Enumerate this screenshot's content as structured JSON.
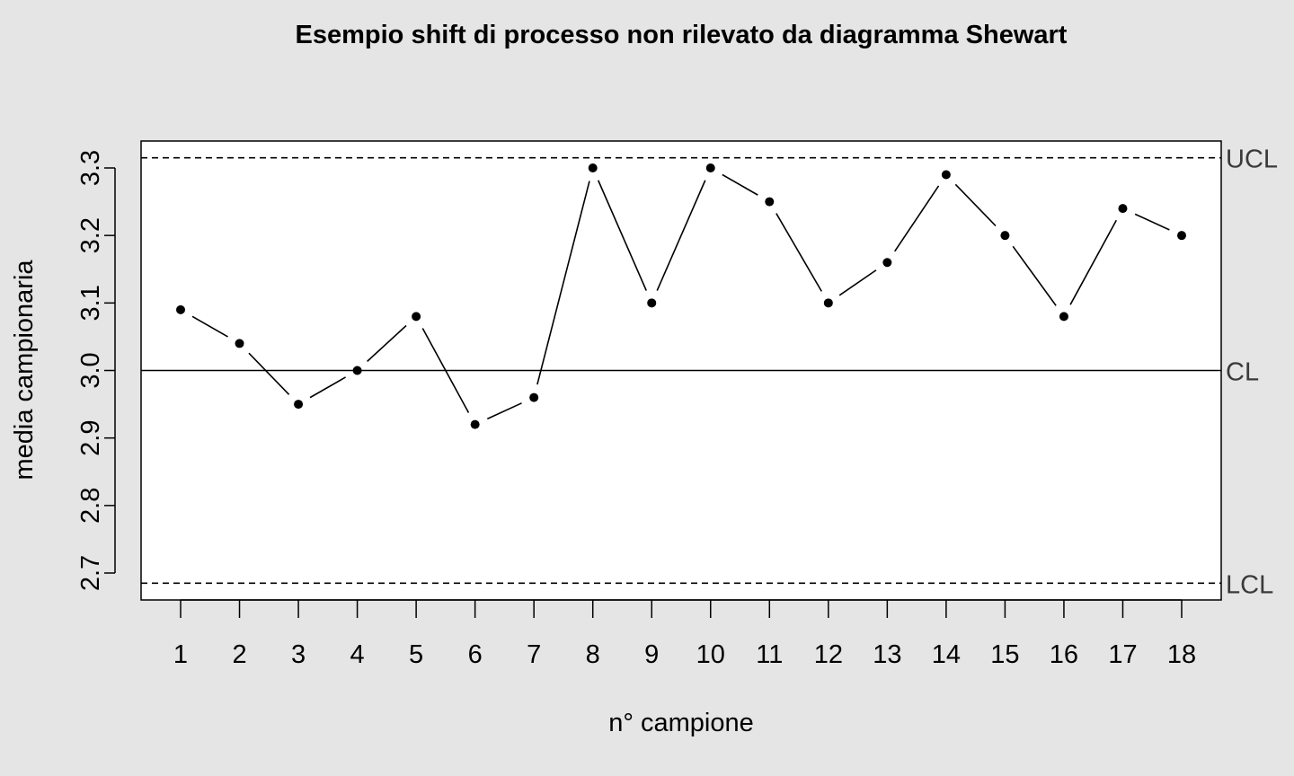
{
  "chart_data": {
    "type": "line",
    "title": "Esempio shift di processo non rilevato da diagramma Shewart",
    "xlabel": "n° campione",
    "ylabel": "media campionaria",
    "x": [
      1,
      2,
      3,
      4,
      5,
      6,
      7,
      8,
      9,
      10,
      11,
      12,
      13,
      14,
      15,
      16,
      17,
      18
    ],
    "series": [
      {
        "values": [
          3.09,
          3.04,
          2.95,
          3.0,
          3.08,
          2.92,
          2.96,
          3.3,
          3.1,
          3.3,
          3.25,
          3.1,
          3.16,
          3.29,
          3.2,
          3.08,
          3.24,
          3.2
        ]
      }
    ],
    "ylim": [
      2.68,
      3.34
    ],
    "yticks": [
      "2.7",
      "2.8",
      "2.9",
      "3.0",
      "3.1",
      "3.2",
      "3.3"
    ],
    "xticks": [
      "1",
      "2",
      "3",
      "4",
      "5",
      "6",
      "7",
      "8",
      "9",
      "10",
      "11",
      "12",
      "13",
      "14",
      "15",
      "16",
      "17",
      "18"
    ],
    "reference_lines": [
      {
        "label": "UCL",
        "value": 3.315,
        "style": "dashed"
      },
      {
        "label": "CL",
        "value": 3.0,
        "style": "solid"
      },
      {
        "label": "LCL",
        "value": 2.685,
        "style": "dashed"
      }
    ],
    "grid": false
  }
}
